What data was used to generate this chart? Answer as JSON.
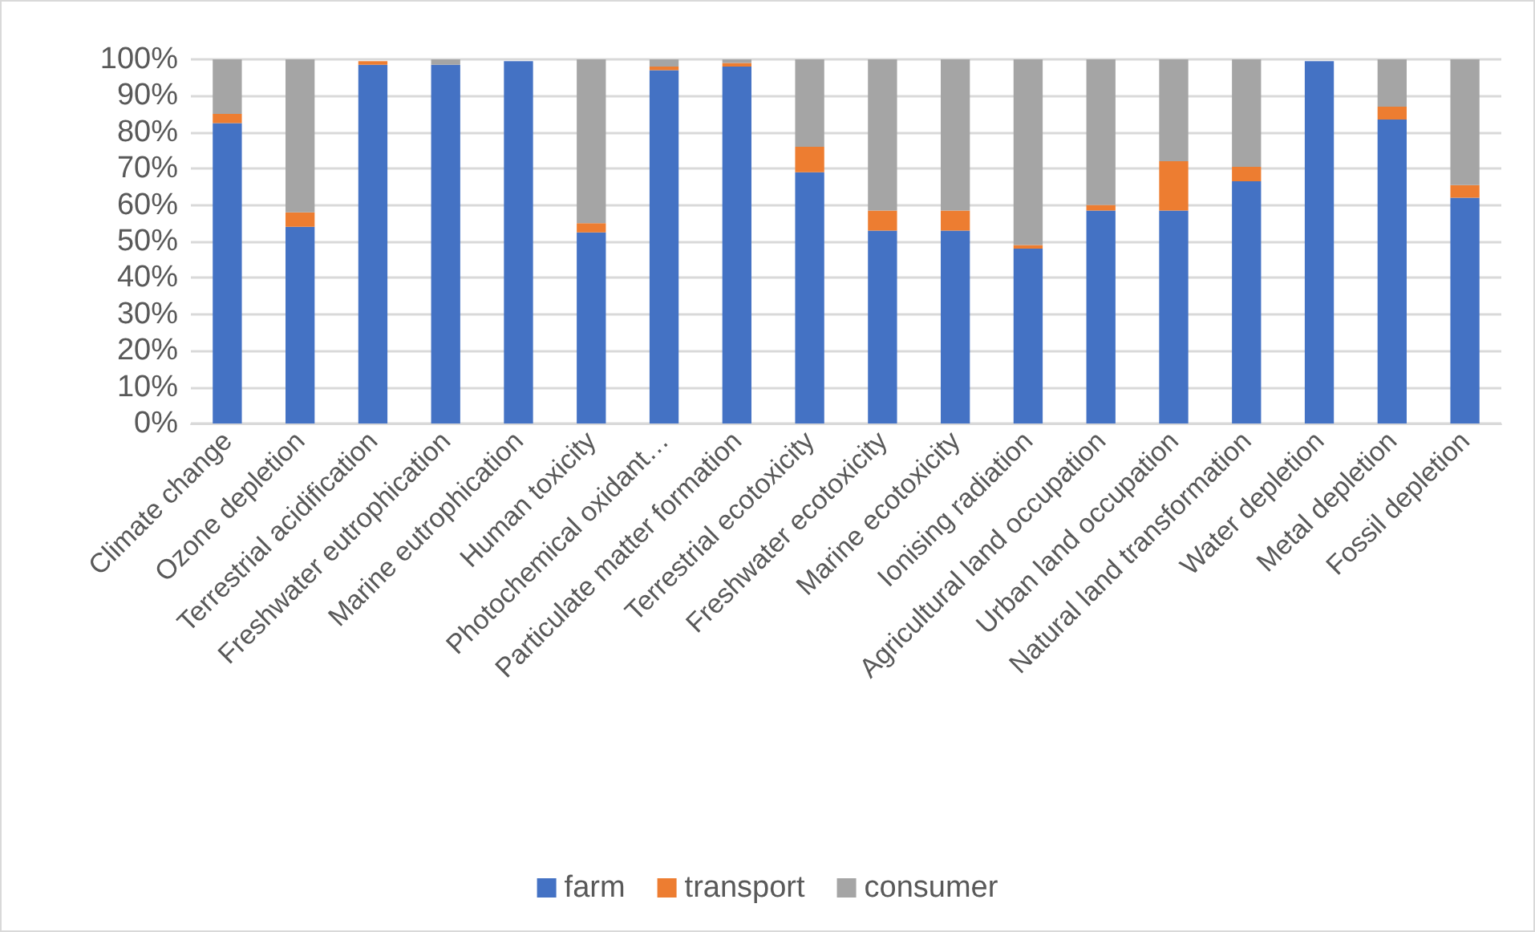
{
  "chart_data": {
    "type": "bar",
    "stacked": true,
    "categories": [
      "Climate change",
      "Ozone depletion",
      "Terrestrial acidification",
      "Freshwater eutrophication",
      "Marine eutrophication",
      "Human toxicity",
      "Photochemical oxidant…",
      "Particulate matter formation",
      "Terrestrial ecotoxicity",
      "Freshwater ecotoxicity",
      "Marine ecotoxicity",
      "Ionising radiation",
      "Agricultural land occupation",
      "Urban land occupation",
      "Natural land transformation",
      "Water depletion",
      "Metal depletion",
      "Fossil depletion"
    ],
    "series": [
      {
        "name": "farm",
        "color": "#4472c4",
        "values": [
          82.5,
          54,
          98.5,
          98.5,
          99.5,
          52.5,
          97,
          98,
          69,
          53,
          53,
          48,
          58.5,
          58.5,
          66.5,
          99.5,
          83.5,
          62
        ]
      },
      {
        "name": "transport",
        "color": "#ed7d31",
        "values": [
          2.5,
          4,
          1,
          0,
          0,
          2.5,
          1,
          1,
          7,
          5.5,
          5.5,
          1,
          1.5,
          13.5,
          4,
          0,
          3.5,
          3.5
        ]
      },
      {
        "name": "consumer",
        "color": "#a5a5a5",
        "values": [
          15,
          42,
          null,
          1.5,
          null,
          45,
          2,
          1,
          24,
          41.5,
          41.5,
          51,
          40,
          28,
          29.5,
          null,
          13,
          34.5
        ]
      }
    ],
    "ylim": [
      0,
      100
    ],
    "yticks": [
      {
        "value": 0,
        "label": "0%"
      },
      {
        "value": 10,
        "label": "10%"
      },
      {
        "value": 20,
        "label": "20%"
      },
      {
        "value": 30,
        "label": "30%"
      },
      {
        "value": 40,
        "label": "40%"
      },
      {
        "value": 50,
        "label": "50%"
      },
      {
        "value": 60,
        "label": "60%"
      },
      {
        "value": 70,
        "label": "70%"
      },
      {
        "value": 80,
        "label": "80%"
      },
      {
        "value": 90,
        "label": "90%"
      },
      {
        "value": 100,
        "label": "100%"
      }
    ],
    "grid": "y",
    "legend": "bottom"
  }
}
